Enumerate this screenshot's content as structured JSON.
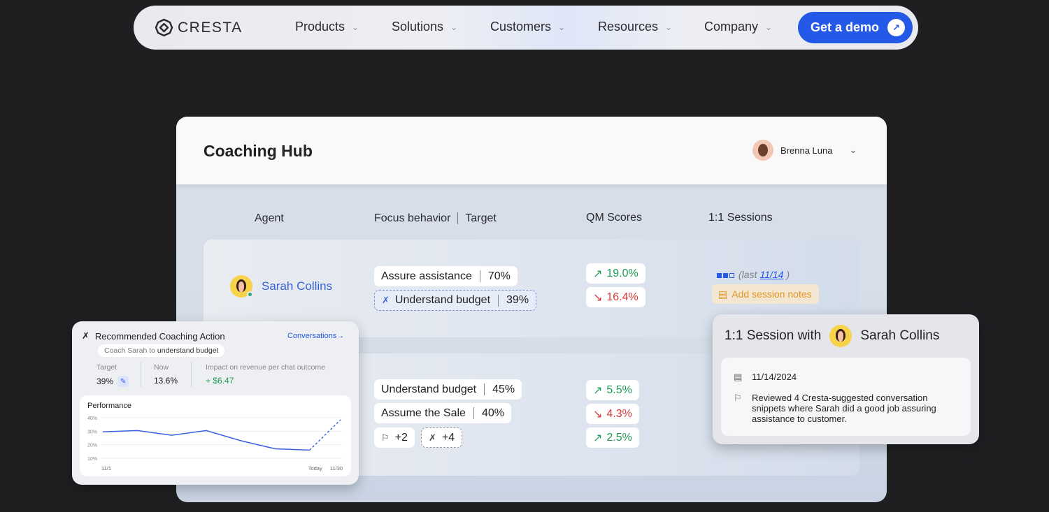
{
  "nav": {
    "logo": "CRESTA",
    "items": [
      "Products",
      "Solutions",
      "Customers",
      "Resources",
      "Company"
    ],
    "cta": "Get a demo",
    "colors": {
      "cta": "#2458e6"
    }
  },
  "hub": {
    "title": "Coaching Hub",
    "user": "Brenna Luna",
    "columns": {
      "agent": "Agent",
      "focus": "Focus behavior",
      "target": "Target",
      "qm": "QM Scores",
      "sessions": "1:1 Sessions"
    },
    "row1": {
      "agent": "Sarah Collins",
      "behaviors": [
        {
          "name": "Assure assistance",
          "target": "70%"
        },
        {
          "name": "Understand budget",
          "target": "39%"
        }
      ],
      "scores": [
        {
          "value": "19.0%",
          "trend": "up"
        },
        {
          "value": "16.4%",
          "trend": "down"
        }
      ],
      "sessions_prefix": "(last ",
      "sessions_date": "11/14",
      "sessions_suffix": ")",
      "add_notes": "Add session notes"
    },
    "row2": {
      "behaviors": [
        {
          "name": "Understand budget",
          "target": "45%"
        },
        {
          "name": "Assume the Sale",
          "target": "40%"
        }
      ],
      "extra_flags": "+2",
      "extra_tools": "+4",
      "scores": [
        {
          "value": "5.5%",
          "trend": "up"
        },
        {
          "value": "4.3%",
          "trend": "down"
        },
        {
          "value": "2.5%",
          "trend": "up"
        }
      ]
    }
  },
  "recommendation": {
    "title": "Recommended Coaching Action",
    "link": "Conversations→",
    "chip_prefix": "Coach Sarah to ",
    "chip_bold": "understand budget",
    "target_label": "Target",
    "target_value": "39%",
    "now_label": "Now",
    "now_value": "13.6%",
    "impact_label": "Impact on revenue per chat outcome",
    "impact_value": "+ $6.47",
    "performance_title": "Performance"
  },
  "chart_data": {
    "type": "line",
    "title": "Performance",
    "y_ticks": [
      "40%",
      "30%",
      "20%",
      "10%"
    ],
    "x_ticks": [
      "11/1",
      "Today",
      "11/30"
    ],
    "ylim": [
      10,
      40
    ],
    "series": [
      {
        "style": "solid",
        "values": [
          29.5,
          30.5,
          27,
          30.5,
          23,
          17,
          16
        ]
      },
      {
        "style": "dashed",
        "values": [
          16,
          38.5
        ]
      }
    ]
  },
  "session": {
    "title": "1:1 Session with",
    "agent": "Sarah Collins",
    "date": "11/14/2024",
    "note": "Reviewed 4 Cresta-suggested conversation snippets where Sarah did a good job assuring assistance to customer."
  }
}
